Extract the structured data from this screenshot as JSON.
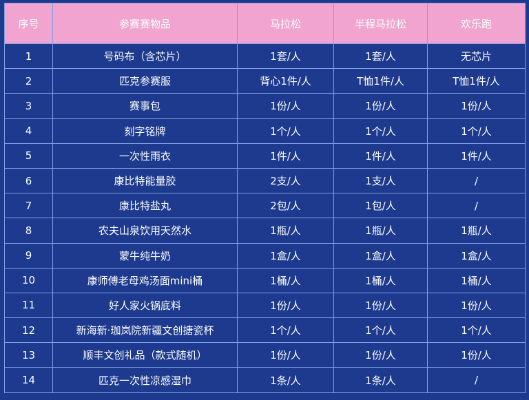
{
  "table": {
    "headers": [
      "序号",
      "参赛赛物品",
      "马拉松",
      "半程马拉松",
      "欢乐跑"
    ],
    "rows": [
      [
        "1",
        "号码布（含芯片）",
        "1套/人",
        "1套/人",
        "无芯片"
      ],
      [
        "2",
        "匹克参赛服",
        "背心1件/人",
        "T恤1件/人",
        "T恤1件/人"
      ],
      [
        "3",
        "赛事包",
        "1份/人",
        "1份/人",
        "1份/人"
      ],
      [
        "4",
        "刻字铭牌",
        "1个/人",
        "1个/人",
        "1个/人"
      ],
      [
        "5",
        "一次性雨衣",
        "1件/人",
        "1件/人",
        "1件/人"
      ],
      [
        "6",
        "康比特能量胶",
        "2支/人",
        "1支/人",
        "/"
      ],
      [
        "7",
        "康比特盐丸",
        "2包/人",
        "1包/人",
        "/"
      ],
      [
        "8",
        "农夫山泉饮用天然水",
        "1瓶/人",
        "1瓶/人",
        "1瓶/人"
      ],
      [
        "9",
        "蒙牛纯牛奶",
        "1盒/人",
        "1盒/人",
        "1盒/人"
      ],
      [
        "10",
        "康师傅老母鸡汤面mini桶",
        "1桶/人",
        "1桶/人",
        "1桶/人"
      ],
      [
        "11",
        "好人家火锅底料",
        "1份/人",
        "1份/人",
        "1份/人"
      ],
      [
        "12",
        "新海新·珈岚院新疆文创搪瓷杯",
        "1个/人",
        "1个/人",
        "1个/人"
      ],
      [
        "13",
        "顺丰文创礼品（款式随机）",
        "1份/人",
        "1份/人",
        "1份/人"
      ],
      [
        "14",
        "匹克一次性凉感湿巾",
        "1条/人",
        "1条/人",
        "/"
      ]
    ]
  },
  "colors": {
    "background": "#1d3a8f",
    "header_background": "#f1a4cf",
    "grid_lines": "#7fa0e6",
    "text": "#ffffff"
  }
}
